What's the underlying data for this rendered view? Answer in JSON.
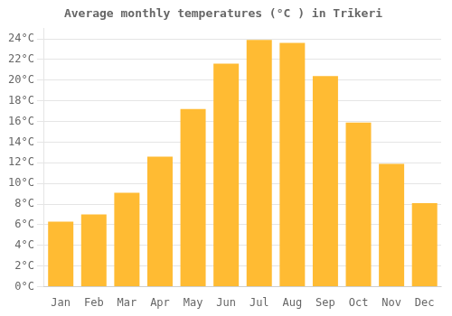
{
  "chart_data": {
    "type": "bar",
    "title": "Average monthly temperatures (°C ) in Trīkeri",
    "categories": [
      "Jan",
      "Feb",
      "Mar",
      "Apr",
      "May",
      "Jun",
      "Jul",
      "Aug",
      "Sep",
      "Oct",
      "Nov",
      "Dec"
    ],
    "values": [
      6.3,
      7.0,
      9.1,
      12.6,
      17.2,
      21.6,
      23.9,
      23.6,
      20.4,
      15.9,
      11.9,
      8.1
    ],
    "color": "#FFBB33",
    "ylim": [
      0,
      25
    ],
    "yticks": [
      {
        "value": 0,
        "label": "0°C"
      },
      {
        "value": 2,
        "label": "2°C"
      },
      {
        "value": 4,
        "label": "4°C"
      },
      {
        "value": 6,
        "label": "6°C"
      },
      {
        "value": 8,
        "label": "8°C"
      },
      {
        "value": 10,
        "label": "10°C"
      },
      {
        "value": 12,
        "label": "12°C"
      },
      {
        "value": 14,
        "label": "14°C"
      },
      {
        "value": 16,
        "label": "16°C"
      },
      {
        "value": 18,
        "label": "18°C"
      },
      {
        "value": 20,
        "label": "20°C"
      },
      {
        "value": 22,
        "label": "22°C"
      },
      {
        "value": 24,
        "label": "24°C"
      }
    ],
    "grid": true
  }
}
